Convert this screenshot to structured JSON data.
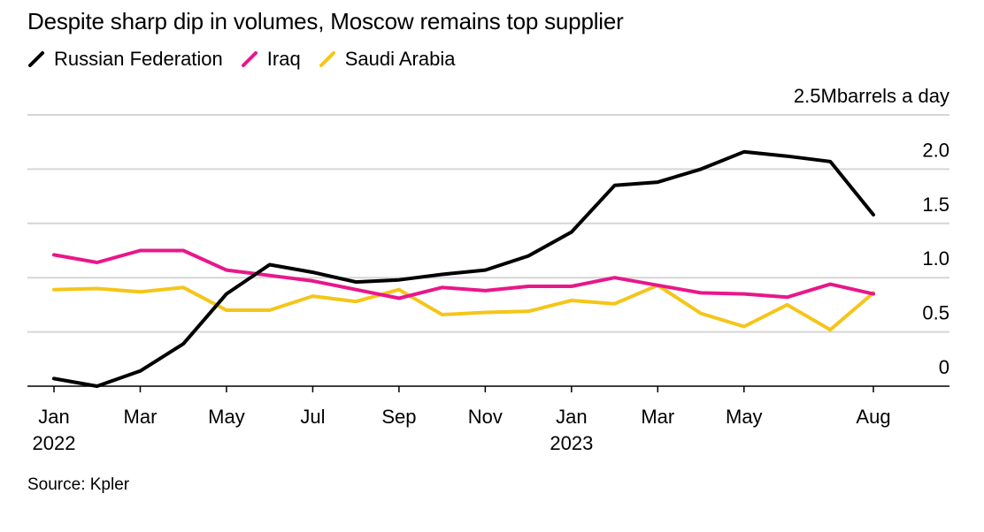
{
  "title": "Despite sharp dip in volumes, Moscow remains top supplier",
  "source": "Source: Kpler",
  "chart_data": {
    "type": "line",
    "title": "Despite sharp dip in volumes, Moscow remains top supplier",
    "ylabel": "barrels a day",
    "y_unit_label": "2.5Mbarrels a day",
    "ylim": [
      0,
      2.5
    ],
    "y_ticks": [
      0,
      0.5,
      1.0,
      1.5,
      2.0,
      2.5
    ],
    "y_tick_labels": [
      "0",
      "0.5",
      "1.0",
      "1.5",
      "2.0",
      "2.5M"
    ],
    "grid": true,
    "legend_position": "top-left",
    "x": [
      "2022-01",
      "2022-02",
      "2022-03",
      "2022-04",
      "2022-05",
      "2022-06",
      "2022-07",
      "2022-08",
      "2022-09",
      "2022-10",
      "2022-11",
      "2022-12",
      "2023-01",
      "2023-02",
      "2023-03",
      "2023-04",
      "2023-05",
      "2023-06",
      "2023-07",
      "2023-08"
    ],
    "x_tick_labels": [
      {
        "x": "2022-01",
        "label": "Jan",
        "sublabel": "2022"
      },
      {
        "x": "2022-03",
        "label": "Mar",
        "sublabel": ""
      },
      {
        "x": "2022-05",
        "label": "May",
        "sublabel": ""
      },
      {
        "x": "2022-07",
        "label": "Jul",
        "sublabel": ""
      },
      {
        "x": "2022-09",
        "label": "Sep",
        "sublabel": ""
      },
      {
        "x": "2022-11",
        "label": "Nov",
        "sublabel": ""
      },
      {
        "x": "2023-01",
        "label": "Jan",
        "sublabel": "2023"
      },
      {
        "x": "2023-03",
        "label": "Mar",
        "sublabel": ""
      },
      {
        "x": "2023-05",
        "label": "May",
        "sublabel": ""
      },
      {
        "x": "2023-08",
        "label": "Aug",
        "sublabel": ""
      }
    ],
    "series": [
      {
        "name": "Russian Federation",
        "color": "#000000",
        "values": [
          0.07,
          0.0,
          0.14,
          0.39,
          0.85,
          1.12,
          1.05,
          0.96,
          0.98,
          1.03,
          1.07,
          1.2,
          1.42,
          1.85,
          1.88,
          2.0,
          2.16,
          2.12,
          2.07,
          1.58
        ]
      },
      {
        "name": "Iraq",
        "color": "#e8178a",
        "values": [
          1.21,
          1.14,
          1.25,
          1.25,
          1.07,
          1.02,
          0.97,
          0.89,
          0.81,
          0.91,
          0.88,
          0.92,
          0.92,
          1.0,
          0.93,
          0.86,
          0.85,
          0.82,
          0.94,
          0.85
        ]
      },
      {
        "name": "Saudi Arabia",
        "color": "#f5c518",
        "values": [
          0.89,
          0.9,
          0.87,
          0.91,
          0.7,
          0.7,
          0.83,
          0.78,
          0.89,
          0.66,
          0.68,
          0.69,
          0.79,
          0.76,
          0.93,
          0.67,
          0.55,
          0.75,
          0.52,
          0.86
        ]
      }
    ]
  }
}
